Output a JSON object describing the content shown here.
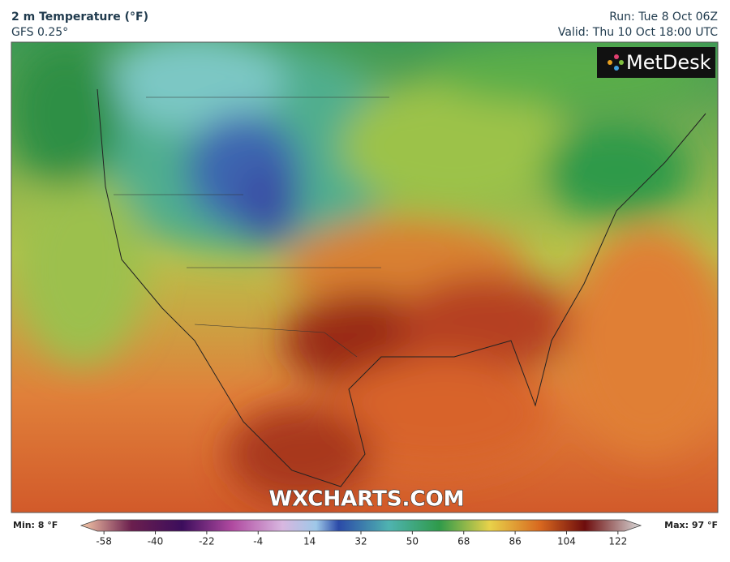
{
  "header": {
    "title": "2 m Temperature (°F)",
    "subtitle": "GFS 0.25°",
    "run": "Run: Tue 8 Oct 06Z",
    "valid": "Valid: Thu 10 Oct 18:00 UTC"
  },
  "logo": "MetDesk",
  "watermark": "WXCHARTS.COM",
  "colorbar": {
    "min_label": "Min: 8 °F",
    "max_label": "Max: 97 °F",
    "lim": [
      -66,
      130
    ],
    "ticks": [
      -58,
      -40,
      -22,
      -4,
      14,
      32,
      50,
      68,
      86,
      104,
      122
    ]
  }
}
